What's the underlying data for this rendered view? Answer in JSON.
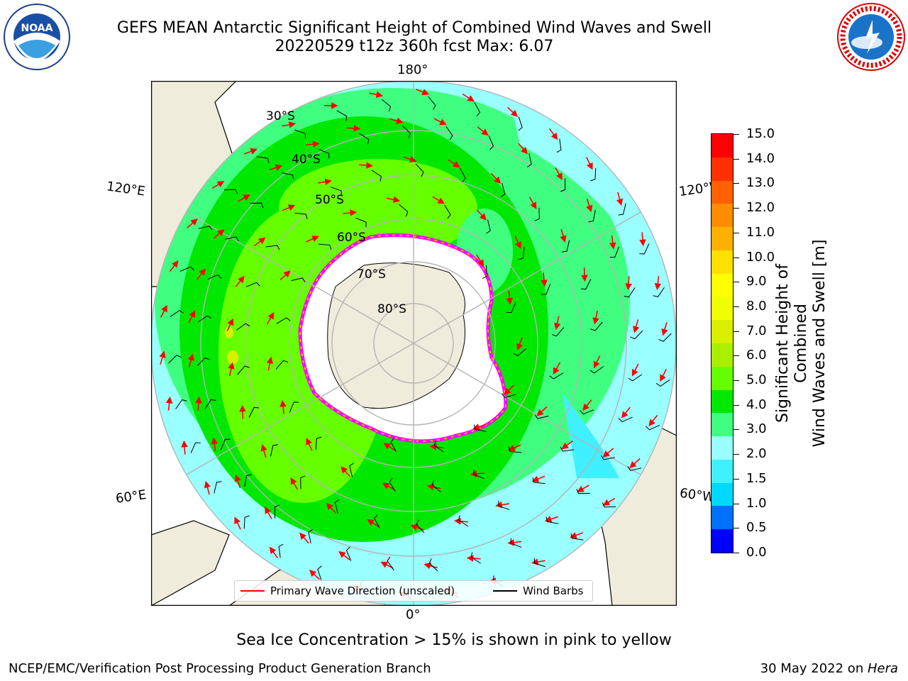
{
  "title": {
    "line1": "GEFS MEAN Antarctic Significant Height of Combined Wind Waves and Swell",
    "line2": "20220529 t12z 360h fcst   Max: 6.07"
  },
  "logos": {
    "left": {
      "text": "NOAA",
      "ring_text": "NATIONAL OCEANIC AND ATMOSPHERIC ADMINISTRATION · U.S. DEPARTMENT OF COMMERCE"
    },
    "right": {
      "ring_text": "NATIONAL WEATHER SERVICE"
    }
  },
  "map": {
    "longitude_labels": {
      "top": "180°",
      "bottom": "0°",
      "left_upper": "120°E",
      "left_lower": "60°E",
      "right_upper": "120°W",
      "right_lower": "60°W"
    },
    "latitude_labels": [
      "30°S",
      "40°S",
      "50°S",
      "60°S",
      "70°S",
      "80°S"
    ],
    "legend": {
      "wave": "Primary Wave Direction (unscaled)",
      "wind": "Wind Barbs"
    },
    "colors": {
      "land": "#efecdc",
      "ice": "#ffffff",
      "graticule": "#b4b4b4",
      "arrow": "#ff0000",
      "barb": "#000000"
    }
  },
  "colorbar": {
    "title_line1": "Significant Height of Combined",
    "title_line2": "Wind Waves and Swell [m]",
    "ticks": [
      "15.0",
      "14.0",
      "13.0",
      "12.0",
      "11.0",
      "10.0",
      "9.0",
      "8.0",
      "7.0",
      "6.0",
      "5.0",
      "4.0",
      "3.0",
      "2.0",
      "1.5",
      "1.0",
      "0.5",
      "0.0"
    ],
    "colors": [
      "#0000ff",
      "#0070ff",
      "#00d8ff",
      "#40f0ff",
      "#99ffff",
      "#40ff80",
      "#00e800",
      "#66ff00",
      "#aaee00",
      "#d8f000",
      "#f0ff00",
      "#ffff00",
      "#ffe000",
      "#ffb000",
      "#ff8c00",
      "#ff6000",
      "#ff3000",
      "#ff0000"
    ]
  },
  "note": "Sea Ice Concentration > 15% is shown in pink to yellow",
  "footer": {
    "left": "NCEP/EMC/Verification Post Processing Product Generation Branch",
    "right_date": "30 May 2022 on ",
    "right_host": "Hera"
  }
}
